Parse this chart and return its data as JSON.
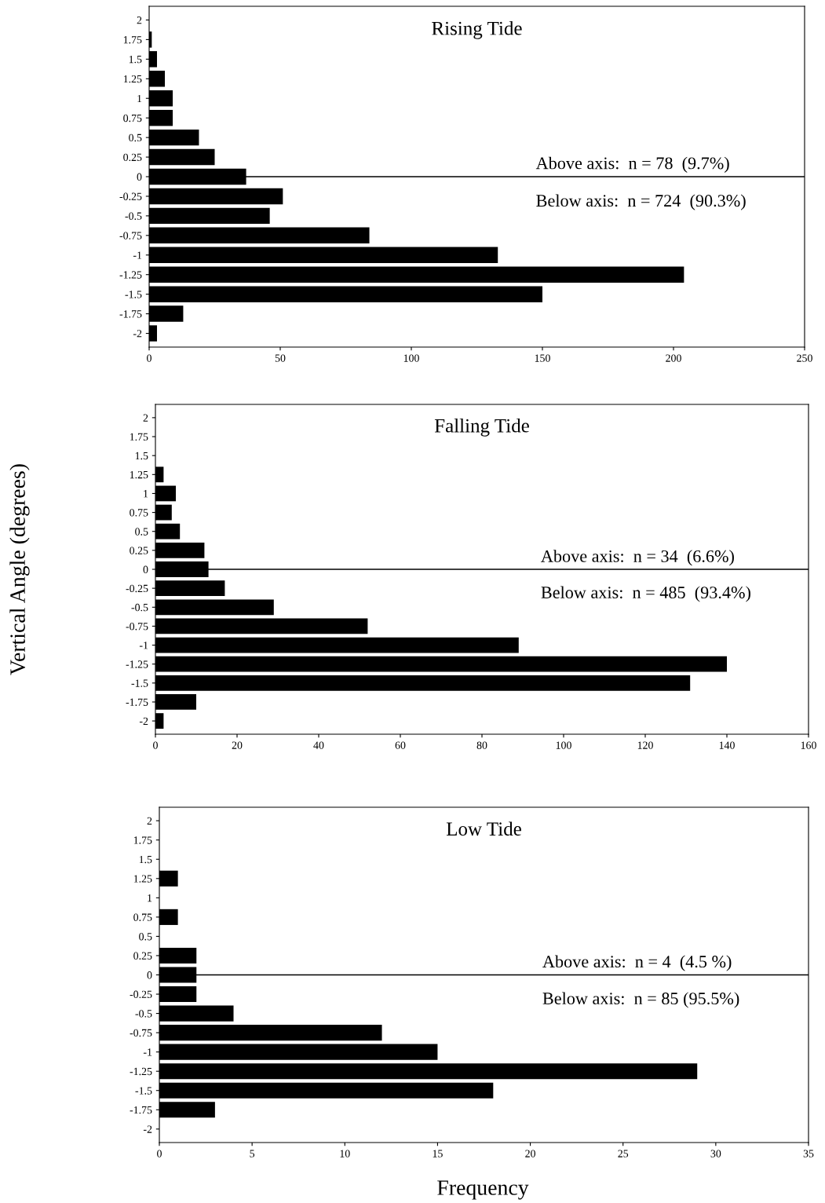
{
  "chart_data": [
    {
      "type": "bar",
      "orientation": "horizontal",
      "title": "Rising Tide",
      "categories": [
        "2",
        "1.75",
        "1.5",
        "1.25",
        "1",
        "0.75",
        "0.5",
        "0.25",
        "0",
        "-0.25",
        "-0.5",
        "-0.75",
        "-1",
        "-1.25",
        "-1.5",
        "-1.75",
        "-2"
      ],
      "values": [
        0,
        1,
        3,
        6,
        9,
        9,
        19,
        25,
        37,
        51,
        46,
        84,
        133,
        204,
        150,
        13,
        3
      ],
      "color": "#000000",
      "xlim": [
        0,
        250
      ],
      "xticks": [
        0,
        50,
        100,
        150,
        200,
        250
      ],
      "grid": false,
      "ref_lines": [
        {
          "axis": "y",
          "value": "0",
          "color": "#000000"
        }
      ],
      "annotations": [
        "Above axis:  n = 78  (9.7%)",
        "Below axis:  n = 724  (90.3%)"
      ]
    },
    {
      "type": "bar",
      "orientation": "horizontal",
      "title": "Falling Tide",
      "categories": [
        "2",
        "1.75",
        "1.5",
        "1.25",
        "1",
        "0.75",
        "0.5",
        "0.25",
        "0",
        "-0.25",
        "-0.5",
        "-0.75",
        "-1",
        "-1.25",
        "-1.5",
        "-1.75",
        "-2"
      ],
      "values": [
        0,
        0,
        0,
        2,
        5,
        4,
        6,
        12,
        13,
        17,
        29,
        52,
        89,
        140,
        131,
        10,
        2
      ],
      "color": "#000000",
      "xlim": [
        0,
        160
      ],
      "xticks": [
        0,
        20,
        40,
        60,
        80,
        100,
        120,
        140,
        160
      ],
      "grid": false,
      "ylabel": "Vertical Angle (degrees)",
      "ref_lines": [
        {
          "axis": "y",
          "value": "0",
          "color": "#000000"
        }
      ],
      "annotations": [
        "Above axis:  n = 34  (6.6%)",
        "Below axis:  n = 485  (93.4%)"
      ]
    },
    {
      "type": "bar",
      "orientation": "horizontal",
      "title": "Low Tide",
      "categories": [
        "2",
        "1.75",
        "1.5",
        "1.25",
        "1",
        "0.75",
        "0.5",
        "0.25",
        "0",
        "-0.25",
        "-0.5",
        "-0.75",
        "-1",
        "-1.25",
        "-1.5",
        "-1.75",
        "-2"
      ],
      "values": [
        0,
        0,
        0,
        1,
        0,
        1,
        0,
        2,
        2,
        2,
        4,
        12,
        15,
        29,
        18,
        3,
        0
      ],
      "color": "#000000",
      "xlim": [
        0,
        35
      ],
      "xticks": [
        0,
        5,
        10,
        15,
        20,
        25,
        30,
        35
      ],
      "grid": false,
      "xlabel": "Frequency",
      "ref_lines": [
        {
          "axis": "y",
          "value": "0",
          "color": "#000000"
        }
      ],
      "annotations": [
        "Above axis:  n = 4  (4.5 %)",
        "Below axis:  n = 85 (95.5%)"
      ]
    }
  ]
}
